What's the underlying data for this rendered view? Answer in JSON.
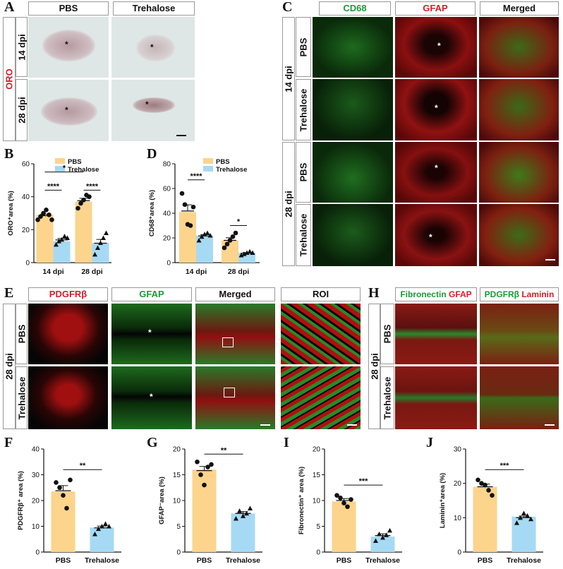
{
  "panels": {
    "A": "A",
    "B": "B",
    "C": "C",
    "D": "D",
    "E": "E",
    "F": "F",
    "G": "G",
    "H": "H",
    "I": "I",
    "J": "J"
  },
  "panel_a": {
    "col_headers": [
      "PBS",
      "Trehalose"
    ],
    "row_headers": [
      "14 dpi",
      "28 dpi"
    ],
    "side_label": "ORO"
  },
  "panel_c": {
    "col_headers": [
      "CD68",
      "GFAP",
      "Merged"
    ],
    "row_headers": [
      "PBS",
      "Trehalose",
      "PBS",
      "Trehalose"
    ],
    "group_labels": [
      "14 dpi",
      "28 dpi"
    ]
  },
  "panel_e": {
    "col_headers": [
      "PDGFRβ",
      "GFAP",
      "Merged",
      "ROI"
    ],
    "row_headers": [
      "PBS",
      "Trehalose"
    ],
    "group_label": "28 dpi"
  },
  "panel_h": {
    "col1_header": {
      "a": "Fibronectin",
      "b": "GFAP"
    },
    "col2_header": {
      "a": "PDGFRβ",
      "b": "Laminin"
    },
    "row_headers": [
      "PBS",
      "Trehalose"
    ],
    "group_label": "28 dpi"
  },
  "asterisk": "*",
  "colors": {
    "pbs": "#fcd48c",
    "trehalose": "#a6daf4",
    "green_label": "#1a9a3a",
    "red_label": "#d81b2a"
  },
  "chart_data": [
    {
      "id": "B",
      "type": "bar",
      "categories": [
        "14 dpi",
        "28 dpi"
      ],
      "series": [
        {
          "name": "PBS",
          "values": [
            29,
            37
          ],
          "points": [
            [
              26,
              28,
              30,
              32,
              29,
              26
            ],
            [
              33,
              36,
              38,
              41,
              40
            ]
          ]
        },
        {
          "name": "Trehalose",
          "values": [
            13,
            12
          ],
          "points": [
            [
              11,
              13,
              14,
              16,
              15
            ],
            [
              5,
              9,
              12,
              15,
              18
            ]
          ]
        }
      ],
      "ylabel": "ORO⁺area (%)",
      "ylim": [
        0,
        60
      ],
      "yticks": [
        0,
        20,
        40,
        60
      ],
      "legend": "top-right",
      "annotations": [
        {
          "text": "****",
          "between": "14 dpi PBS–Trehalose"
        },
        {
          "text": "****",
          "between": "28 dpi PBS–Trehalose"
        },
        {
          "text": "*",
          "between": "14 dpi PBS–28 dpi PBS"
        }
      ]
    },
    {
      "id": "D",
      "type": "bar",
      "categories": [
        "14 dpi",
        "28 dpi"
      ],
      "series": [
        {
          "name": "PBS",
          "values": [
            41,
            18
          ],
          "points": [
            [
              56,
              47,
              31,
              30,
              45
            ],
            [
              12,
              15,
              18,
              21,
              24
            ]
          ]
        },
        {
          "name": "Trehalose",
          "values": [
            22,
            8
          ],
          "points": [
            [
              18,
              21,
              23,
              24,
              22
            ],
            [
              6,
              7,
              8,
              9,
              8
            ]
          ]
        }
      ],
      "ylabel": "CD68⁺area (%)",
      "ylim": [
        0,
        80
      ],
      "yticks": [
        0,
        20,
        40,
        60,
        80
      ],
      "legend": "top-right",
      "annotations": [
        {
          "text": "****",
          "between": "14 dpi PBS–Trehalose"
        },
        {
          "text": "*",
          "between": "28 dpi PBS–Trehalose"
        }
      ]
    },
    {
      "id": "F",
      "type": "bar",
      "categories": [
        "PBS",
        "Trehalose"
      ],
      "values": [
        23.5,
        9.5
      ],
      "points": [
        [
          27,
          25,
          22,
          17,
          28
        ],
        [
          7,
          9,
          10,
          11,
          10
        ]
      ],
      "ylabel": "PDGFRβ⁺ area (%)",
      "ylim": [
        0,
        40
      ],
      "yticks": [
        0,
        10,
        20,
        30,
        40
      ],
      "annotations": [
        {
          "text": "**"
        }
      ]
    },
    {
      "id": "G",
      "type": "bar",
      "categories": [
        "PBS",
        "Trehalose"
      ],
      "values": [
        16,
        7.5
      ],
      "points": [
        [
          17.5,
          15,
          13,
          16.5,
          17
        ],
        [
          6.5,
          8,
          7,
          7.5,
          8.5
        ]
      ],
      "ylabel": "GFAP⁻area (%)",
      "ylim": [
        0,
        20
      ],
      "yticks": [
        0,
        5,
        10,
        15,
        20
      ],
      "annotations": [
        {
          "text": "**"
        }
      ]
    },
    {
      "id": "I",
      "type": "bar",
      "categories": [
        "PBS",
        "Trehalose"
      ],
      "values": [
        9.8,
        3
      ],
      "points": [
        [
          11,
          10.5,
          9.5,
          8.8,
          10.2
        ],
        [
          2.2,
          3.5,
          2.8,
          3.3,
          4.2
        ]
      ],
      "ylabel": "Fibronectin⁺ area (%)",
      "ylim": [
        0,
        20
      ],
      "yticks": [
        0,
        5,
        10,
        15,
        20
      ],
      "annotations": [
        {
          "text": "***"
        }
      ]
    },
    {
      "id": "J",
      "type": "bar",
      "categories": [
        "PBS",
        "Trehalose"
      ],
      "values": [
        19,
        10.3
      ],
      "points": [
        [
          21,
          20,
          19.5,
          18,
          16.5
        ],
        [
          8.5,
          10,
          11.3,
          10.6,
          9.6
        ]
      ],
      "ylabel": "Laminin⁺area (%)",
      "ylim": [
        0,
        30
      ],
      "yticks": [
        0,
        10,
        20,
        30
      ],
      "annotations": [
        {
          "text": "***"
        }
      ]
    }
  ]
}
